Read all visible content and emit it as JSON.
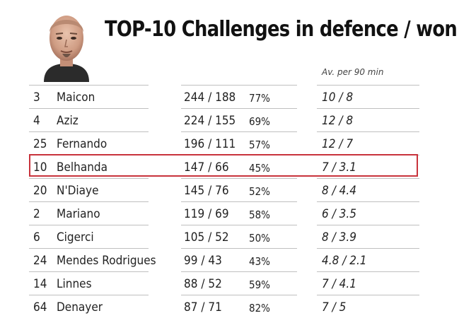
{
  "chart_data": {
    "type": "table",
    "title": "TOP-10 Challenges in defence / won",
    "columns": [
      "",
      "",
      "",
      "",
      "Av. per 90 min"
    ],
    "highlight_color": "#c8333c",
    "rows": [
      {
        "number": "3",
        "name": "Maicon",
        "challenges_won": "244 / 188",
        "percent": "77%",
        "per90": "10 / 8"
      },
      {
        "number": "4",
        "name": "Aziz",
        "challenges_won": "224 / 155",
        "percent": "69%",
        "per90": "12 / 8"
      },
      {
        "number": "25",
        "name": "Fernando",
        "challenges_won": "196 / 111",
        "percent": "57%",
        "per90": "12 / 7"
      },
      {
        "number": "10",
        "name": "Belhanda",
        "challenges_won": "147 / 66",
        "percent": "45%",
        "per90": "7 / 3.1",
        "highlighted": true
      },
      {
        "number": "20",
        "name": "N'Diaye",
        "challenges_won": "145 / 76",
        "percent": "52%",
        "per90": "8 / 4.4"
      },
      {
        "number": "2",
        "name": "Mariano",
        "challenges_won": "119 / 69",
        "percent": "58%",
        "per90": "6 / 3.5"
      },
      {
        "number": "6",
        "name": "Cigerci",
        "challenges_won": "105 / 52",
        "percent": "50%",
        "per90": "8 / 3.9"
      },
      {
        "number": "24",
        "name": "Mendes Rodrigues",
        "challenges_won": "99 / 43",
        "percent": "43%",
        "per90": "4.8 / 2.1"
      },
      {
        "number": "14",
        "name": "Linnes",
        "challenges_won": "88 / 52",
        "percent": "59%",
        "per90": "7 / 4.1"
      },
      {
        "number": "64",
        "name": "Denayer",
        "challenges_won": "87 / 71",
        "percent": "82%",
        "per90": "7 / 5"
      }
    ]
  }
}
